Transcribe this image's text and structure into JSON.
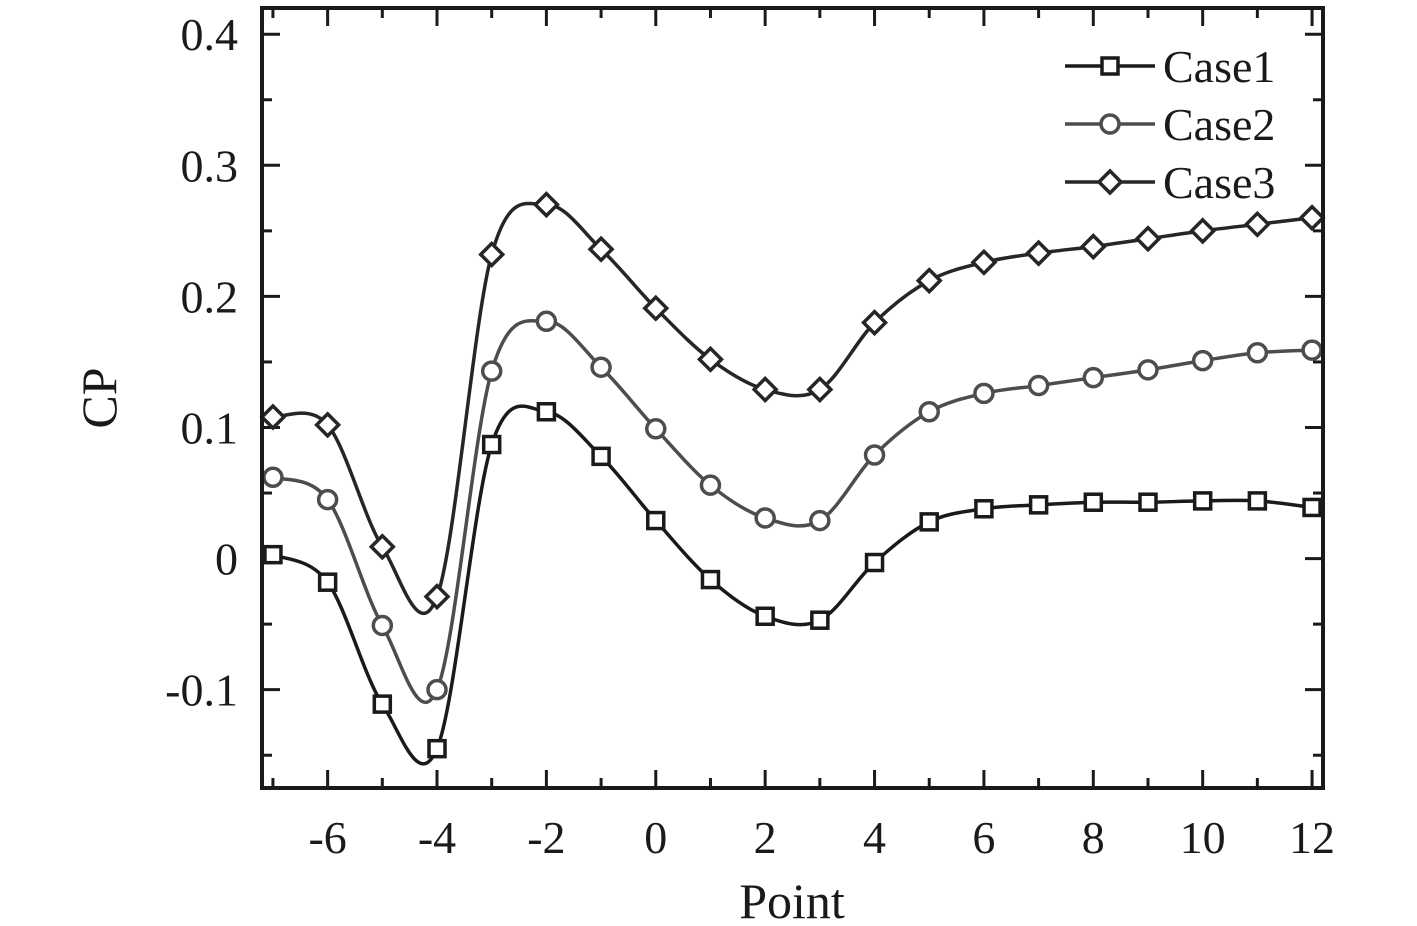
{
  "chart_data": {
    "type": "line",
    "title": "",
    "xlabel": "Point",
    "ylabel": "CP",
    "xlim": [
      -7.2,
      12.2
    ],
    "ylim": [
      -0.175,
      0.42
    ],
    "xticks": [
      -6,
      -4,
      -2,
      0,
      2,
      4,
      6,
      8,
      10,
      12
    ],
    "xtick_labels": [
      "-6",
      "-4",
      "-2",
      "0",
      "2",
      "4",
      "6",
      "8",
      "10",
      "12"
    ],
    "yticks": [
      -0.1,
      0,
      0.1,
      0.2,
      0.3,
      0.4
    ],
    "ytick_labels": [
      "-0.1",
      "0",
      "0.1",
      "0.2",
      "0.3",
      "0.4"
    ],
    "grid": false,
    "legend_position": "top-right",
    "x": [
      -7,
      -6,
      -5,
      -4,
      -3,
      -2,
      -1,
      0,
      1,
      2,
      3,
      4,
      5,
      6,
      7,
      8,
      9,
      10,
      11,
      12
    ],
    "series": [
      {
        "name": "Case1",
        "marker": "square",
        "color": "#1a1a1a",
        "values": [
          0.003,
          -0.018,
          -0.111,
          -0.145,
          0.087,
          0.112,
          0.078,
          0.029,
          -0.016,
          -0.044,
          -0.047,
          -0.003,
          0.028,
          0.038,
          0.041,
          0.043,
          0.043,
          0.044,
          0.044,
          0.039
        ]
      },
      {
        "name": "Case2",
        "marker": "circle",
        "color": "#4d4d4d",
        "values": [
          0.062,
          0.045,
          -0.051,
          -0.1,
          0.143,
          0.181,
          0.146,
          0.099,
          0.056,
          0.031,
          0.029,
          0.079,
          0.112,
          0.126,
          0.132,
          0.138,
          0.144,
          0.151,
          0.157,
          0.159
        ]
      },
      {
        "name": "Case3",
        "marker": "diamond",
        "color": "#262626",
        "values": [
          0.108,
          0.102,
          0.009,
          -0.029,
          0.232,
          0.27,
          0.236,
          0.191,
          0.152,
          0.129,
          0.129,
          0.18,
          0.212,
          0.226,
          0.233,
          0.238,
          0.244,
          0.25,
          0.255,
          0.26
        ]
      }
    ]
  }
}
